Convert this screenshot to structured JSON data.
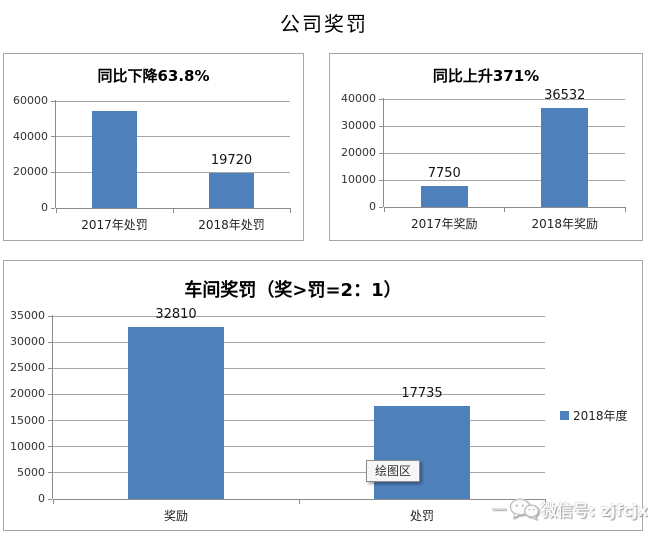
{
  "header": {
    "title": "公司奖罚"
  },
  "watermark": {
    "icon": "wechat-icon",
    "label": "微信号: zjfcjx"
  },
  "colors": {
    "bar": "#4e80bc",
    "gridline": "#a6a6a6",
    "axis": "#8c8c8c",
    "panel_border": "#a6a6a6"
  },
  "chart_data": [
    {
      "type": "bar",
      "title": "同比下降63.8%",
      "categories": [
        "2017年处罚",
        "2018年处罚"
      ],
      "values": [
        54475,
        19720
      ],
      "data_labels": [
        "",
        "19720"
      ],
      "ylim": [
        0,
        60000
      ],
      "ytick_step": 20000,
      "grid": true,
      "legend_position": "none"
    },
    {
      "type": "bar",
      "title": "同比上升371%",
      "categories": [
        "2017年奖励",
        "2018年奖励"
      ],
      "values": [
        7750,
        36532
      ],
      "data_labels": [
        "7750",
        "36532"
      ],
      "ylim": [
        0,
        40000
      ],
      "ytick_step": 10000,
      "grid": true,
      "legend_position": "none"
    },
    {
      "type": "bar",
      "title": "车间奖罚（奖>罚=2：1）",
      "categories": [
        "奖励",
        "处罚"
      ],
      "values": [
        32810,
        17735
      ],
      "data_labels": [
        "32810",
        "17735"
      ],
      "ylim": [
        0,
        35000
      ],
      "ytick_step": 5000,
      "grid": true,
      "legend": {
        "label": "2018年度",
        "position": "right",
        "color": "#4e80bc"
      },
      "tooltip": {
        "label": "绘图区"
      }
    }
  ]
}
